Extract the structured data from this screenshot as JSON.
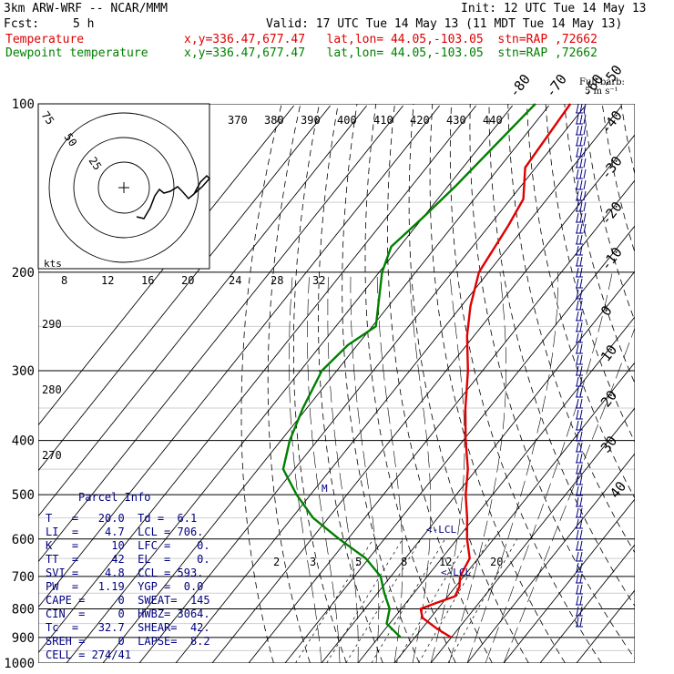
{
  "header": {
    "model": "3km ARW-WRF -- NCAR/MMM",
    "fcst_label": "Fcst:",
    "fcst_value": "5 h",
    "init": "Init: 12 UTC Tue 14 May 13",
    "valid": "Valid: 17 UTC Tue 14 May 13 (11 MDT Tue 14 May 13)"
  },
  "series_labels": [
    {
      "name": "Temperature",
      "info": "x,y=336.47,677.47   lat,lon= 44.05,-103.05  stn=RAP ,72662",
      "color": "#e00000"
    },
    {
      "name": "Dewpoint temperature",
      "info": "x,y=336.47,677.47   lat,lon= 44.05,-103.05  stn=RAP ,72662",
      "color": "#008000"
    }
  ],
  "barb_legend": {
    "title": "Full barb:",
    "value": "5 m s⁻¹"
  },
  "parcel": {
    "title": "Parcel Info",
    "rows": [
      "T   =   20.0  Td =  6.1",
      "LI  =    4.7  LCL = 706.",
      "K   =     10  LFC =    0.",
      "TT  =     42  EL  =    0.",
      "SVI =    4.8  CCL = 593.",
      "PW  =   1.19  YGP =  0.0",
      "CAPE =     0  SWEAT=  145",
      "CIN  =     0  HWBZ= 3064.",
      "Tc  =   32.7  SHEAR=  42.",
      "SREH =     0  LAPSE=  8.2",
      "CELL = 274/41"
    ]
  },
  "hodograph": {
    "kts_label": "kts",
    "ring_labels": [
      "75",
      "50",
      "25"
    ]
  },
  "colors": {
    "temperature": "#e00000",
    "dewpoint": "#008000",
    "grid": "#000000",
    "annot": "#000080"
  },
  "chart_data": {
    "type": "line",
    "title": "",
    "xlabel": "",
    "ylabel": "",
    "y_scale": "log",
    "ylim": [
      1000,
      100
    ],
    "pressure_ticks": [
      100,
      200,
      300,
      400,
      500,
      600,
      700,
      800,
      900,
      1000
    ],
    "isotherm_labels": [
      -80,
      -70,
      -60,
      -50,
      -40,
      -30,
      -20,
      -10,
      0,
      10,
      20,
      30,
      40
    ],
    "theta_labels": [
      370,
      380,
      390,
      400,
      410,
      420,
      430,
      440
    ],
    "theta_e_labels": [
      290,
      280,
      270
    ],
    "inset_x_ticks": [
      8,
      12,
      16,
      20,
      24,
      28,
      32
    ],
    "mixing_ratio_labels": [
      2,
      3,
      5,
      8,
      12,
      20
    ],
    "annotations": [
      "M",
      "<-LCL",
      "<-LCL"
    ],
    "series": [
      {
        "name": "Temperature",
        "pressure": [
          100,
          130,
          148,
          165,
          200,
          230,
          260,
          300,
          350,
          400,
          450,
          500,
          550,
          600,
          650,
          700,
          730,
          760,
          780,
          800,
          830,
          870,
          900
        ],
        "temperature": [
          -64.5,
          -62.9,
          -56.5,
          -54.8,
          -52.6,
          -47.5,
          -41.9,
          -34.0,
          -26.5,
          -19.3,
          -12.4,
          -7.4,
          -1.9,
          2.7,
          7.7,
          9.0,
          11.1,
          12.0,
          8.4,
          5.3,
          7.8,
          14.5,
          20.0
        ]
      },
      {
        "name": "Dewpoint temperature",
        "pressure": [
          100,
          140,
          160,
          180,
          200,
          250,
          270,
          300,
          350,
          400,
          450,
          500,
          550,
          600,
          650,
          700,
          750,
          800,
          850,
          900
        ],
        "temperature": [
          -74.1,
          -77.9,
          -80.0,
          -82.3,
          -79.2,
          -69.0,
          -72.6,
          -74.1,
          -71.1,
          -67.6,
          -63.1,
          -53.8,
          -44.2,
          -32.4,
          -20.8,
          -12.8,
          -8.1,
          -3.2,
          -0.8,
          6.1
        ]
      }
    ]
  }
}
